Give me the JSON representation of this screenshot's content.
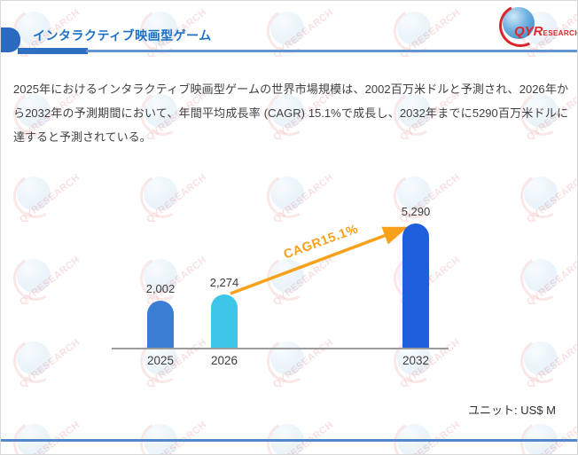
{
  "header": {
    "title": "インタラクティブ映画型ゲーム",
    "logo": {
      "primary": "QYR",
      "secondary": "ESEARCH"
    }
  },
  "summary": "2025年におけるインタラクティブ映画型ゲームの世界市場規模は、2002百万米ドルと予測され、2026年から2032年の予測期間において、年間平均成長率 (CAGR) 15.1%で成長し、2032年までに5290百万米ドルに達すると予測されている。",
  "watermark": {
    "text": "QYRESEARCH",
    "rows": 6,
    "cols": 5
  },
  "chart_data": {
    "type": "bar",
    "title": "",
    "categories": [
      "2025",
      "2026",
      "2032"
    ],
    "values": [
      2002,
      2274,
      5290
    ],
    "value_labels": [
      "2,002",
      "2,274",
      "5,290"
    ],
    "annotation": "CAGR15.1%",
    "unit_note": "ユニット: US$ M",
    "ylim": [
      0,
      5600
    ],
    "bar_colors": [
      "#3A7DD3",
      "#3EC6E8",
      "#1F5FDE"
    ],
    "arrow_color": "#F7A11A",
    "axis_color": "#9C9C9C",
    "grid": false,
    "legend": false
  }
}
